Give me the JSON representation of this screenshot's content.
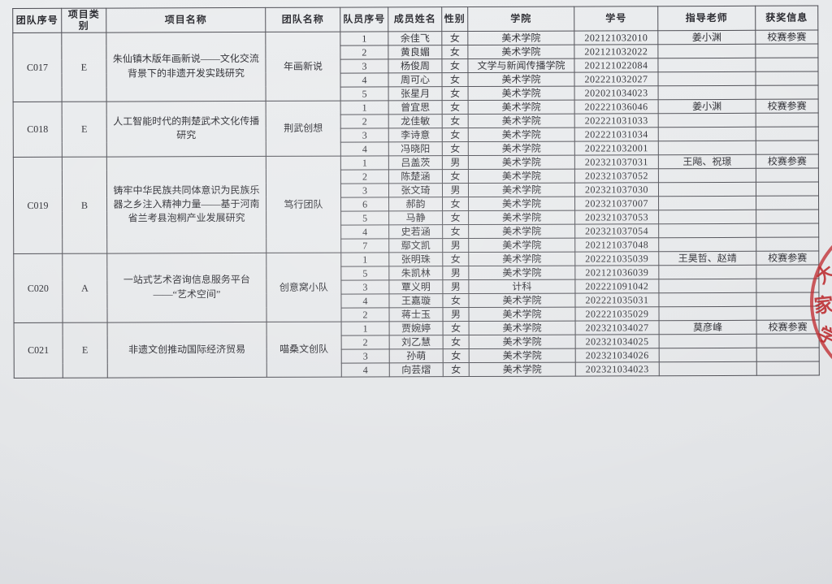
{
  "table": {
    "columns": [
      {
        "key": "team_no",
        "label": "团队序号"
      },
      {
        "key": "category",
        "label": "项目类别"
      },
      {
        "key": "project",
        "label": "项目名称"
      },
      {
        "key": "team_name",
        "label": "团队名称"
      },
      {
        "key": "member_no",
        "label": "队员序号"
      },
      {
        "key": "member_name",
        "label": "成员姓名"
      },
      {
        "key": "gender",
        "label": "性别"
      },
      {
        "key": "college",
        "label": "学院"
      },
      {
        "key": "student_id",
        "label": "学号"
      },
      {
        "key": "advisor",
        "label": "指导老师"
      },
      {
        "key": "award",
        "label": "获奖信息"
      }
    ],
    "groups": [
      {
        "team_no": "C017",
        "category": "E",
        "project": "朱仙镇木版年画新说——文化交流背景下的非遗开发实践研究",
        "team_name": "年画新说",
        "members": [
          [
            "1",
            "余佳飞",
            "女",
            "美术学院",
            "202121032010",
            "姜小渊",
            "校赛参赛"
          ],
          [
            "2",
            "黄良媚",
            "女",
            "美术学院",
            "202121032022",
            "",
            ""
          ],
          [
            "3",
            "杨俊周",
            "女",
            "文学与新闻传播学院",
            "202121022084",
            "",
            ""
          ],
          [
            "4",
            "周可心",
            "女",
            "美术学院",
            "202221032027",
            "",
            ""
          ],
          [
            "5",
            "张星月",
            "女",
            "美术学院",
            "202021034023",
            "",
            ""
          ]
        ]
      },
      {
        "team_no": "C018",
        "category": "E",
        "project": "人工智能时代的荆楚武术文化传播研究",
        "team_name": "荆武创想",
        "members": [
          [
            "1",
            "曾宜思",
            "女",
            "美术学院",
            "202221036046",
            "姜小渊",
            "校赛参赛"
          ],
          [
            "2",
            "龙佳敏",
            "女",
            "美术学院",
            "202221031033",
            "",
            ""
          ],
          [
            "3",
            "李诗意",
            "女",
            "美术学院",
            "202221031034",
            "",
            ""
          ],
          [
            "4",
            "冯晓阳",
            "女",
            "美术学院",
            "202221032001",
            "",
            ""
          ]
        ]
      },
      {
        "team_no": "C019",
        "category": "B",
        "project": "铸牢中华民族共同体意识为民族乐器之乡注入精神力量——基于河南省兰考县泡桐产业发展研究",
        "team_name": "笃行团队",
        "members": [
          [
            "1",
            "吕盖茨",
            "男",
            "美术学院",
            "202321037031",
            "王飚、祝璟",
            "校赛参赛"
          ],
          [
            "2",
            "陈楚涵",
            "女",
            "美术学院",
            "202321037052",
            "",
            ""
          ],
          [
            "3",
            "张文琦",
            "男",
            "美术学院",
            "202321037030",
            "",
            ""
          ],
          [
            "6",
            "郝韵",
            "女",
            "美术学院",
            "202321037007",
            "",
            ""
          ],
          [
            "5",
            "马静",
            "女",
            "美术学院",
            "202321037053",
            "",
            ""
          ],
          [
            "4",
            "史若涵",
            "女",
            "美术学院",
            "202321037054",
            "",
            ""
          ],
          [
            "7",
            "鄢文凯",
            "男",
            "美术学院",
            "202121037048",
            "",
            ""
          ]
        ]
      },
      {
        "team_no": "C020",
        "category": "A",
        "project": "一站式艺术咨询信息服务平台——“艺术空间”",
        "team_name": "创意窝小队",
        "members": [
          [
            "1",
            "张明珠",
            "女",
            "美术学院",
            "202221035039",
            "王昊哲、赵靖",
            "校赛参赛"
          ],
          [
            "5",
            "朱凯林",
            "男",
            "美术学院",
            "202121036039",
            "",
            ""
          ],
          [
            "3",
            "覃义明",
            "男",
            "计科",
            "202221091042",
            "",
            ""
          ],
          [
            "4",
            "王嘉璇",
            "女",
            "美术学院",
            "202221035031",
            "",
            ""
          ],
          [
            "2",
            "蒋士玉",
            "男",
            "美术学院",
            "202221035029",
            "",
            ""
          ]
        ]
      },
      {
        "team_no": "C021",
        "category": "E",
        "project": "非遗文创推动国际经济贸易",
        "team_name": "喵桑文创队",
        "members": [
          [
            "1",
            "贾婉婷",
            "女",
            "美术学院",
            "202321034027",
            "莫彦峰",
            "校赛参赛"
          ],
          [
            "2",
            "刘乙慧",
            "女",
            "美术学院",
            "202321034025",
            "",
            ""
          ],
          [
            "3",
            "孙萌",
            "女",
            "美术学院",
            "202321034026",
            "",
            ""
          ],
          [
            "4",
            "向芸熠",
            "女",
            "美术学院",
            "202321034023",
            "",
            ""
          ]
        ]
      }
    ]
  },
  "stamp": {
    "color": "#bf272b",
    "glyphs": [
      "大",
      "家",
      "学"
    ]
  }
}
